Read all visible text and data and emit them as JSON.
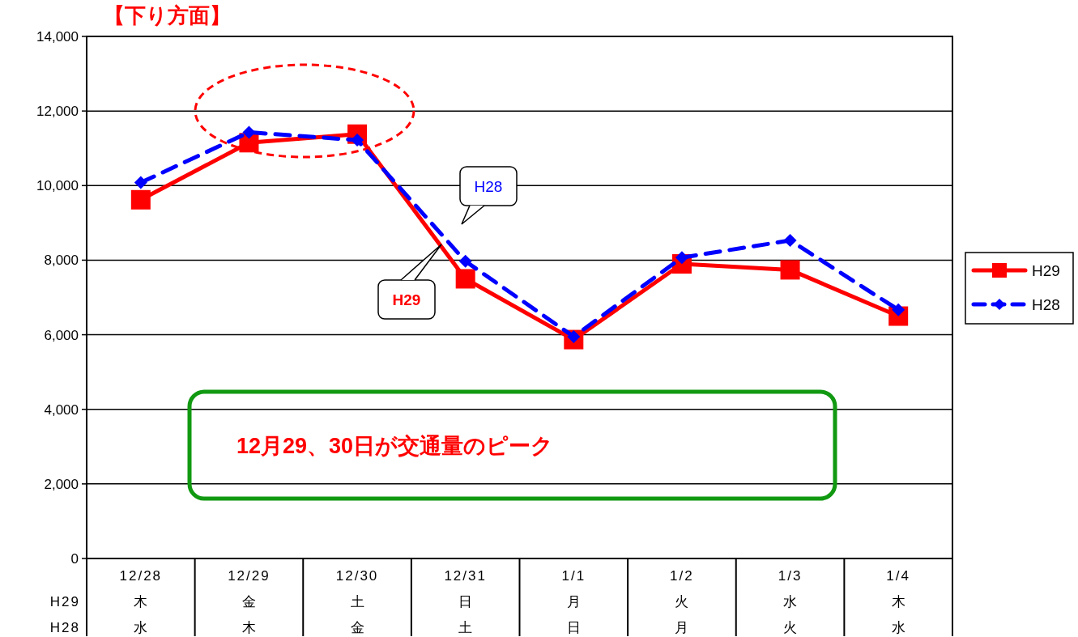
{
  "chart_data": {
    "type": "line",
    "title": "【下り方面】",
    "categories": [
      "12/28",
      "12/29",
      "12/30",
      "12/31",
      "1/1",
      "1/2",
      "1/3",
      "1/4"
    ],
    "series": [
      {
        "name": "H29",
        "color": "#ff0000",
        "marker": "square",
        "line_style": "solid",
        "values": [
          9620,
          11150,
          11380,
          7500,
          5870,
          7900,
          7740,
          6500
        ]
      },
      {
        "name": "H28",
        "color": "#0000ff",
        "marker": "diamond",
        "line_style": "dashed",
        "values": [
          10080,
          11430,
          11220,
          7970,
          5950,
          8070,
          8530,
          6670
        ]
      }
    ],
    "ylim": [
      0,
      14000
    ],
    "yticks": [
      {
        "value": 0,
        "label": "0"
      },
      {
        "value": 2000,
        "label": "2,000"
      },
      {
        "value": 4000,
        "label": "4,000"
      },
      {
        "value": 6000,
        "label": "6,000"
      },
      {
        "value": 8000,
        "label": "8,000"
      },
      {
        "value": 10000,
        "label": "10,000"
      },
      {
        "value": 12000,
        "label": "12,000"
      },
      {
        "value": 14000,
        "label": "14,000"
      }
    ],
    "grid": "y",
    "legend": "right",
    "annotations": [
      "12月29、30日が交通量のピーク",
      "H29",
      "H28",
      "木",
      "金",
      "土",
      "日",
      "月",
      "火",
      "水",
      "木",
      "水",
      "木",
      "金",
      "土",
      "日",
      "月",
      "火",
      "水"
    ]
  }
}
